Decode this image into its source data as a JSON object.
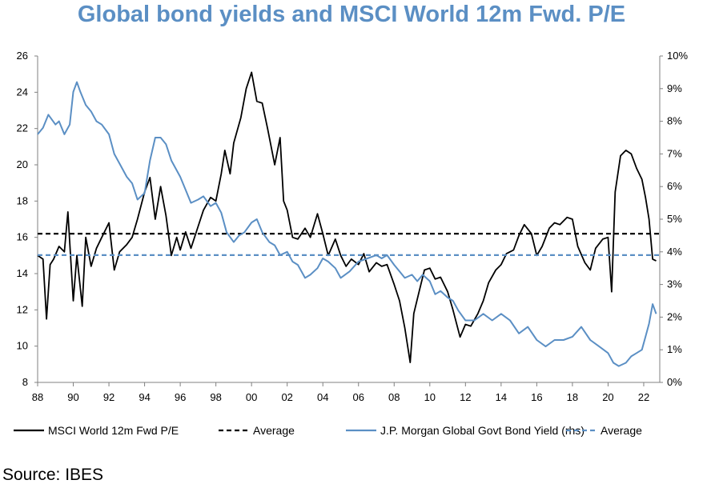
{
  "chart_data": {
    "type": "line",
    "title": "Global bond yields and MSCI World 12m Fwd. P/E",
    "source": "Source: IBES",
    "x_ticks": [
      "88",
      "90",
      "92",
      "94",
      "96",
      "98",
      "00",
      "02",
      "04",
      "06",
      "08",
      "10",
      "12",
      "14",
      "16",
      "18",
      "20",
      "22"
    ],
    "x_range": [
      1988,
      2022.9
    ],
    "y_left": {
      "range": [
        8,
        26
      ],
      "ticks": [
        "26",
        "24",
        "22",
        "20",
        "18",
        "16",
        "14",
        "12",
        "10",
        "8"
      ]
    },
    "y_right": {
      "range": [
        0,
        10
      ],
      "ticks": [
        "10%",
        "9%",
        "8%",
        "7%",
        "6%",
        "5%",
        "4%",
        "3%",
        "2%",
        "1%",
        "0%"
      ]
    },
    "grid": false,
    "legend_position": "bottom",
    "colors": {
      "pe": "#000000",
      "yield": "#5b8fc4"
    },
    "series": [
      {
        "name": "MSCI World 12m Fwd P/E",
        "axis": "left",
        "style": "solid",
        "x": [
          1988.0,
          1988.3,
          1988.5,
          1988.7,
          1988.9,
          1989.2,
          1989.5,
          1989.7,
          1990.0,
          1990.2,
          1990.5,
          1990.7,
          1991.0,
          1991.3,
          1991.6,
          1992.0,
          1992.3,
          1992.6,
          1993.0,
          1993.3,
          1993.6,
          1994.0,
          1994.3,
          1994.6,
          1994.9,
          1995.2,
          1995.5,
          1995.8,
          1996.0,
          1996.3,
          1996.6,
          1997.0,
          1997.3,
          1997.7,
          1998.0,
          1998.3,
          1998.5,
          1998.8,
          1999.0,
          1999.4,
          1999.7,
          2000.0,
          2000.3,
          2000.6,
          2000.9,
          2001.3,
          2001.6,
          2001.8,
          2002.0,
          2002.3,
          2002.6,
          2003.0,
          2003.3,
          2003.7,
          2004.0,
          2004.3,
          2004.7,
          2005.0,
          2005.3,
          2005.6,
          2006.0,
          2006.3,
          2006.6,
          2007.0,
          2007.3,
          2007.6,
          2008.0,
          2008.3,
          2008.6,
          2008.9,
          2009.1,
          2009.4,
          2009.7,
          2010.0,
          2010.3,
          2010.6,
          2011.0,
          2011.3,
          2011.7,
          2012.0,
          2012.3,
          2012.7,
          2013.0,
          2013.3,
          2013.7,
          2014.0,
          2014.3,
          2014.7,
          2015.0,
          2015.3,
          2015.7,
          2016.0,
          2016.3,
          2016.7,
          2017.0,
          2017.3,
          2017.7,
          2018.0,
          2018.3,
          2018.7,
          2019.0,
          2019.3,
          2019.7,
          2020.0,
          2020.2,
          2020.4,
          2020.7,
          2021.0,
          2021.3,
          2021.6,
          2021.9,
          2022.1,
          2022.3,
          2022.5,
          2022.7
        ],
        "values": [
          15.0,
          14.8,
          11.5,
          14.5,
          14.8,
          15.5,
          15.2,
          17.4,
          12.5,
          15.0,
          12.2,
          16.0,
          14.4,
          15.4,
          16.0,
          16.8,
          14.2,
          15.2,
          15.6,
          16.0,
          17.0,
          18.5,
          19.3,
          17.0,
          18.8,
          17.2,
          15.0,
          16.0,
          15.3,
          16.3,
          15.4,
          16.6,
          17.5,
          18.2,
          18.0,
          19.5,
          20.8,
          19.5,
          21.2,
          22.6,
          24.2,
          25.1,
          23.5,
          23.4,
          22.0,
          20.0,
          21.5,
          18.0,
          17.5,
          16.0,
          15.9,
          16.5,
          16.0,
          17.3,
          16.2,
          15.0,
          15.9,
          15.0,
          14.4,
          14.8,
          14.5,
          15.1,
          14.1,
          14.6,
          14.4,
          14.5,
          13.4,
          12.5,
          11.0,
          9.1,
          11.8,
          13.0,
          14.2,
          14.3,
          13.7,
          13.8,
          13.0,
          12.0,
          10.5,
          11.2,
          11.1,
          11.8,
          12.5,
          13.5,
          14.2,
          14.5,
          15.1,
          15.3,
          16.1,
          16.7,
          16.2,
          15.0,
          15.5,
          16.5,
          16.8,
          16.7,
          17.1,
          17.0,
          15.5,
          14.6,
          14.2,
          15.4,
          15.9,
          16.0,
          13.0,
          18.5,
          20.5,
          20.8,
          20.6,
          19.8,
          19.2,
          18.2,
          17.0,
          14.8,
          14.7
        ]
      },
      {
        "name": "Average",
        "axis": "left",
        "style": "dashed",
        "constant": 16.2
      },
      {
        "name": "J.P. Morgan Global Govt Bond Yield (rhs)",
        "axis": "right",
        "style": "solid",
        "x": [
          1988.0,
          1988.3,
          1988.6,
          1989.0,
          1989.2,
          1989.5,
          1989.8,
          1990.0,
          1990.2,
          1990.4,
          1990.7,
          1991.0,
          1991.3,
          1991.6,
          1992.0,
          1992.3,
          1992.6,
          1993.0,
          1993.3,
          1993.6,
          1994.0,
          1994.3,
          1994.6,
          1994.9,
          1995.2,
          1995.5,
          1996.0,
          1996.3,
          1996.6,
          1997.0,
          1997.3,
          1997.7,
          1998.0,
          1998.3,
          1998.6,
          1999.0,
          1999.3,
          1999.6,
          2000.0,
          2000.3,
          2000.6,
          2001.0,
          2001.3,
          2001.6,
          2002.0,
          2002.3,
          2002.6,
          2003.0,
          2003.3,
          2003.7,
          2004.0,
          2004.3,
          2004.7,
          2005.0,
          2005.5,
          2006.0,
          2006.5,
          2007.0,
          2007.3,
          2007.6,
          2008.0,
          2008.3,
          2008.6,
          2009.0,
          2009.3,
          2009.6,
          2010.0,
          2010.3,
          2010.6,
          2011.0,
          2011.3,
          2011.6,
          2012.0,
          2012.5,
          2013.0,
          2013.5,
          2014.0,
          2014.5,
          2015.0,
          2015.5,
          2016.0,
          2016.5,
          2017.0,
          2017.5,
          2018.0,
          2018.5,
          2019.0,
          2019.5,
          2020.0,
          2020.3,
          2020.6,
          2021.0,
          2021.3,
          2021.6,
          2021.9,
          2022.1,
          2022.3,
          2022.5,
          2022.7
        ],
        "values": [
          7.6,
          7.8,
          8.2,
          7.9,
          8.0,
          7.6,
          7.9,
          8.9,
          9.2,
          8.9,
          8.5,
          8.3,
          8.0,
          7.9,
          7.6,
          7.0,
          6.7,
          6.3,
          6.1,
          5.6,
          5.8,
          6.8,
          7.5,
          7.5,
          7.3,
          6.8,
          6.3,
          5.9,
          5.5,
          5.6,
          5.7,
          5.4,
          5.5,
          5.2,
          4.6,
          4.3,
          4.5,
          4.6,
          4.9,
          5.0,
          4.6,
          4.3,
          4.2,
          3.9,
          4.0,
          3.7,
          3.6,
          3.2,
          3.3,
          3.5,
          3.8,
          3.7,
          3.5,
          3.2,
          3.4,
          3.7,
          3.8,
          3.9,
          3.8,
          3.9,
          3.6,
          3.4,
          3.2,
          3.3,
          3.1,
          3.3,
          3.1,
          2.7,
          2.8,
          2.6,
          2.5,
          2.2,
          1.9,
          1.9,
          2.1,
          1.9,
          2.1,
          1.9,
          1.5,
          1.7,
          1.3,
          1.1,
          1.3,
          1.3,
          1.4,
          1.7,
          1.3,
          1.1,
          0.9,
          0.6,
          0.5,
          0.6,
          0.8,
          0.9,
          1.0,
          1.4,
          1.8,
          2.4,
          2.1
        ]
      },
      {
        "name": "Average",
        "axis": "right",
        "style": "dashed",
        "constant": 3.9
      }
    ]
  }
}
